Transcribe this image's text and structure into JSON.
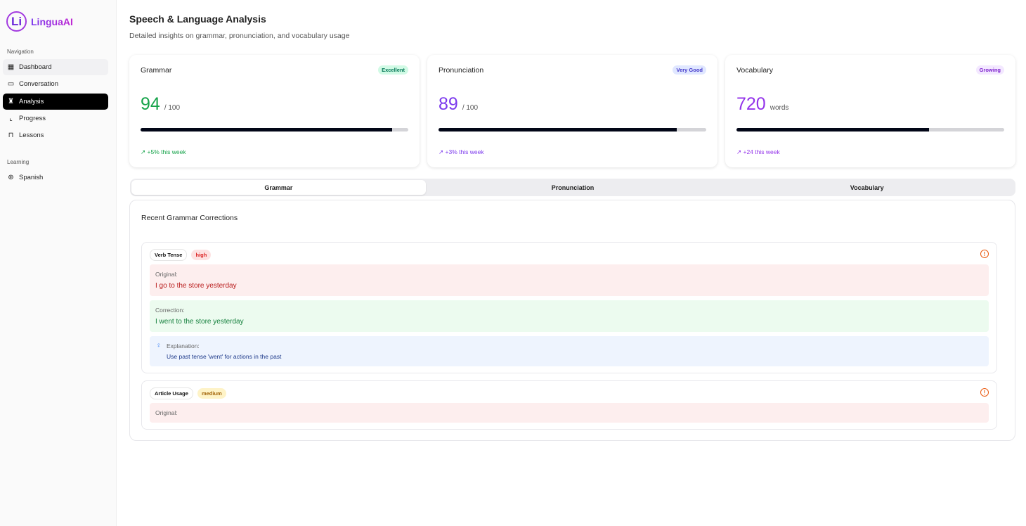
{
  "brand": {
    "mark": "Li",
    "name": "LinguaAI"
  },
  "sidebar": {
    "nav_heading": "Navigation",
    "items": [
      {
        "label": "Dashboard",
        "icon": "grid-icon"
      },
      {
        "label": "Conversation",
        "icon": "message-icon"
      },
      {
        "label": "Analysis",
        "icon": "trophy-icon"
      },
      {
        "label": "Progress",
        "icon": "chart-icon"
      },
      {
        "label": "Lessons",
        "icon": "book-icon"
      }
    ],
    "learning_heading": "Learning",
    "language": {
      "label": "Spanish",
      "icon": "globe-icon"
    }
  },
  "header": {
    "title": "Speech & Language Analysis",
    "subtitle": "Detailed insights on grammar, pronunciation, and vocabulary usage"
  },
  "cards": [
    {
      "title": "Grammar",
      "badge": "Excellent",
      "score": "94",
      "unit": "/ 100",
      "progress": 94,
      "trend": "+5% this week",
      "color": "#16a34a",
      "badge_bg": "#d1fae5",
      "badge_color": "#047857"
    },
    {
      "title": "Pronunciation",
      "badge": "Very Good",
      "score": "89",
      "unit": "/ 100",
      "progress": 89,
      "trend": "+3% this week",
      "color": "#7c3aed",
      "badge_bg": "#e0e7ff",
      "badge_color": "#4338ca"
    },
    {
      "title": "Vocabulary",
      "badge": "Growing",
      "score": "720",
      "unit": "words",
      "progress": 72,
      "trend": "+24 this week",
      "color": "#9333ea",
      "badge_bg": "#f3e8ff",
      "badge_color": "#7e22ce"
    }
  ],
  "tabs": [
    "Grammar",
    "Pronunciation",
    "Vocabulary"
  ],
  "panel": {
    "title": "Recent Grammar Corrections",
    "original_label": "Original:",
    "correction_label": "Correction:",
    "explanation_label": "Explanation:",
    "items": [
      {
        "type": "Verb Tense",
        "severity": "high",
        "original": "I go to the store yesterday",
        "correction": "I went to the store yesterday",
        "explanation": "Use past tense 'went' for actions in the past"
      },
      {
        "type": "Article Usage",
        "severity": "medium"
      }
    ]
  }
}
